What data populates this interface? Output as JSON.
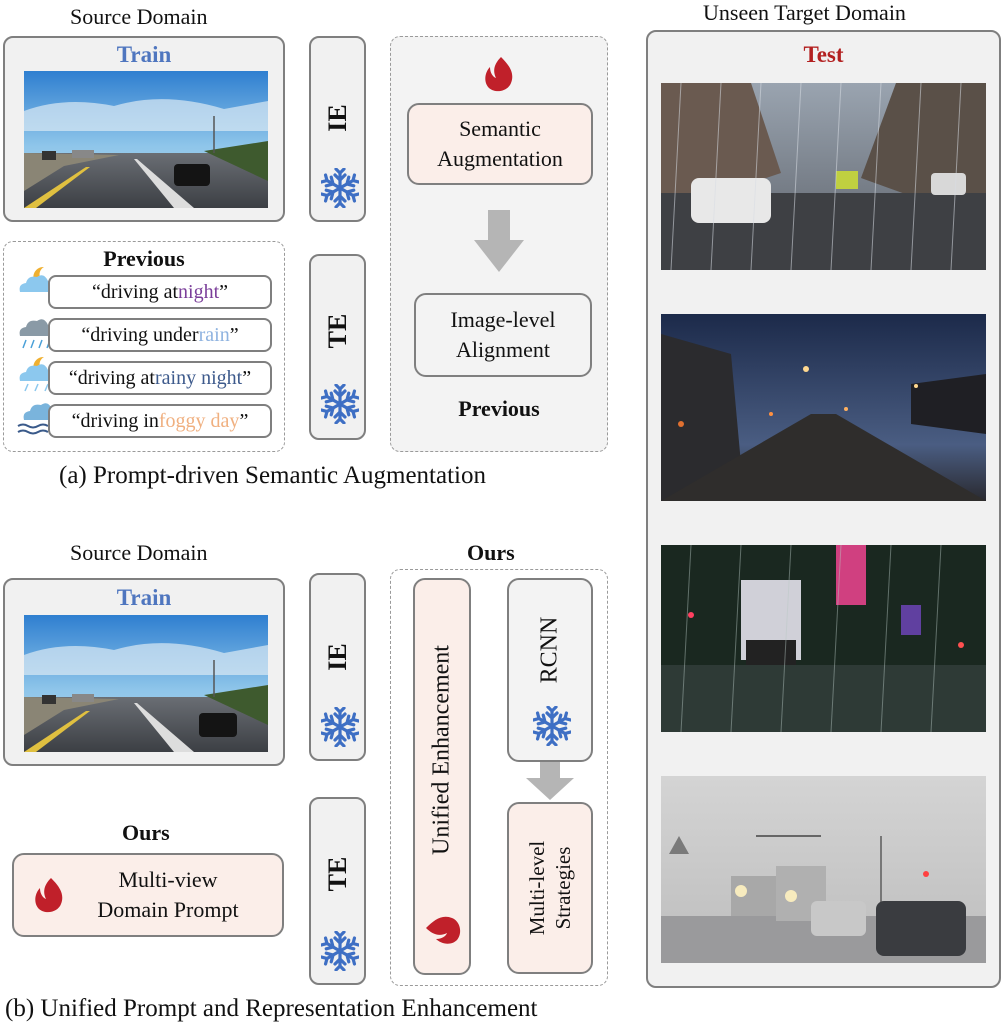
{
  "source_domain_top": "Source Domain",
  "source_domain_bottom": "Source Domain",
  "train_top": "Train",
  "train_bottom": "Train",
  "target_domain": "Unseen Target Domain",
  "test": "Test",
  "ie_top": "IE",
  "te_top": "TE",
  "ie_bottom": "IE",
  "te_bottom": "TE",
  "previous_heading": "Previous",
  "prompts": [
    {
      "prefix": "“driving at ",
      "keyword": "night",
      "suffix": "”",
      "color": "#7b3f9a"
    },
    {
      "prefix": "“driving under ",
      "keyword": "rain",
      "suffix": "”",
      "color": "#8fb3e0"
    },
    {
      "prefix": "“driving at ",
      "keyword": "rainy night",
      "suffix": "”",
      "color": "#3d5a8c"
    },
    {
      "prefix": "“driving  in ",
      "keyword": "foggy day",
      "suffix": "”",
      "color": "#f0b080"
    }
  ],
  "semantic_aug_line1": "Semantic",
  "semantic_aug_line2": "Augmentation",
  "image_align_line1": "Image-level",
  "image_align_line2": "Alignment",
  "previous_label": "Previous",
  "caption_a": "(a) Prompt-driven Semantic Augmentation",
  "ours_heading_right": "Ours",
  "ours_heading_left": "Ours",
  "unified_enhancement": "Unified Enhancement",
  "rcnn": "RCNN",
  "multilevel_line1": "Multi-level",
  "multilevel_line2": "Strategies",
  "multiview_line1": "Multi-view",
  "multiview_line2": "Domain Prompt",
  "caption_b": "(b) Unified Prompt and Representation Enhancement",
  "colors": {
    "train": "#4f76bf",
    "test": "#b32020",
    "flame": "#c0202a",
    "snowflake": "#3e6fc4"
  },
  "icons": [
    "flame-icon",
    "snowflake-icon",
    "down-arrow-icon",
    "weather-icon"
  ]
}
